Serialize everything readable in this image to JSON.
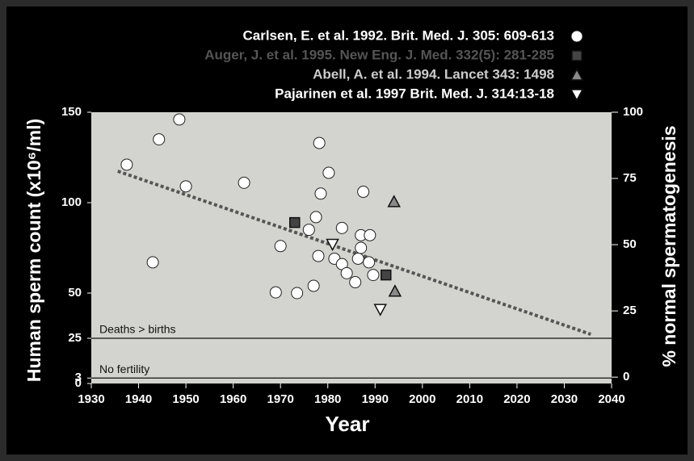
{
  "chart_data": {
    "type": "scatter",
    "x_label": "Year",
    "y_label": "Human sperm count (x10⁶/ml)",
    "y2_label": "% normal spermatogenesis",
    "xlim": [
      1930,
      2040
    ],
    "xticks": [
      1930,
      1940,
      1950,
      1960,
      1970,
      1980,
      1990,
      2000,
      2010,
      2020,
      2030,
      2040
    ],
    "ylim": [
      0,
      150
    ],
    "yticks": [
      0,
      3,
      25,
      50,
      100,
      150
    ],
    "y2lim": [
      -2.4,
      100
    ],
    "y2ticks": [
      0,
      25,
      50,
      75,
      100
    ],
    "legend": "top-right",
    "series": [
      {
        "name": "Carlsen, E. et al. 1992. Brit. Med. J. 305: 609-613",
        "color": "#ffffff",
        "text_color": "#ffffff",
        "marker": "circle",
        "x": [
          1937.5,
          1944.3,
          1948.6,
          1950,
          1943,
          1962.3,
          1969,
          1970,
          1973.5,
          1977,
          1976,
          1977.5,
          1978.5,
          1978.2,
          1980.2,
          1978,
          1981.4,
          1983,
          1983,
          1984,
          1985.8,
          1986.4,
          1987,
          1987,
          1987.5,
          1988.7,
          1988.9,
          1989.6
        ],
        "values": [
          121,
          135,
          146,
          109,
          67,
          111,
          50.4,
          76,
          50,
          54,
          85,
          92,
          105,
          133,
          116.5,
          70.5,
          69,
          86,
          66,
          61,
          56,
          69,
          75,
          82,
          106,
          67,
          82,
          60
        ]
      },
      {
        "name": "Auger, J. et al. 1995. New Eng. J. Med. 332(5): 281-285",
        "color": "#444444",
        "text_color": "#555555",
        "marker": "square",
        "x": [
          1973,
          1992.3
        ],
        "values": [
          89,
          60
        ]
      },
      {
        "name": "Abell, A. et al. 1994. Lancet 343: 1498",
        "color": "#8a8a8a",
        "text_color": "#cccccc",
        "marker": "triangle-up",
        "x": [
          1994,
          1994.2
        ],
        "values": [
          100.5,
          51
        ]
      },
      {
        "name": "Pajarinen et al. 1997 Brit. Med. J. 314:13-18",
        "color": "#ffffff",
        "text_color": "#ffffff",
        "marker": "triangle-down",
        "x": [
          1981,
          1991.1
        ],
        "values": [
          77,
          41
        ]
      }
    ],
    "trend": {
      "x": [
        1935.6,
        2035.6
      ],
      "values": [
        117.4,
        27.2
      ],
      "color": "#555555"
    },
    "reference_lines": [
      {
        "value": 25,
        "label": "Deaths > births"
      },
      {
        "value": 3,
        "label": "No fertility"
      }
    ],
    "plot_background": "#d3d3cf"
  }
}
